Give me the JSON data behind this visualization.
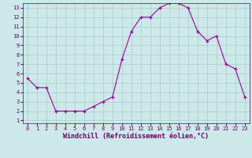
{
  "x": [
    0,
    1,
    2,
    3,
    4,
    5,
    6,
    7,
    8,
    9,
    10,
    11,
    12,
    13,
    14,
    15,
    16,
    17,
    18,
    19,
    20,
    21,
    22,
    23
  ],
  "y": [
    5.5,
    4.5,
    4.5,
    2.0,
    2.0,
    2.0,
    2.0,
    2.5,
    3.0,
    3.5,
    7.5,
    10.5,
    12.0,
    12.0,
    13.0,
    13.5,
    13.5,
    13.0,
    10.5,
    9.5,
    10.0,
    7.0,
    6.5,
    3.5
  ],
  "xlabel": "Windchill (Refroidissement éolien,°C)",
  "ylabel": "",
  "xlim_min": -0.5,
  "xlim_max": 23.5,
  "ylim_min": 0.7,
  "ylim_max": 13.5,
  "yticks": [
    1,
    2,
    3,
    4,
    5,
    6,
    7,
    8,
    9,
    10,
    11,
    12,
    13
  ],
  "xticks": [
    0,
    1,
    2,
    3,
    4,
    5,
    6,
    7,
    8,
    9,
    10,
    11,
    12,
    13,
    14,
    15,
    16,
    17,
    18,
    19,
    20,
    21,
    22,
    23
  ],
  "line_color": "#990099",
  "marker": "+",
  "bg_color": "#cce8e8",
  "grid_color": "#aacccc",
  "tick_label_color": "#660066",
  "xlabel_color": "#660066"
}
